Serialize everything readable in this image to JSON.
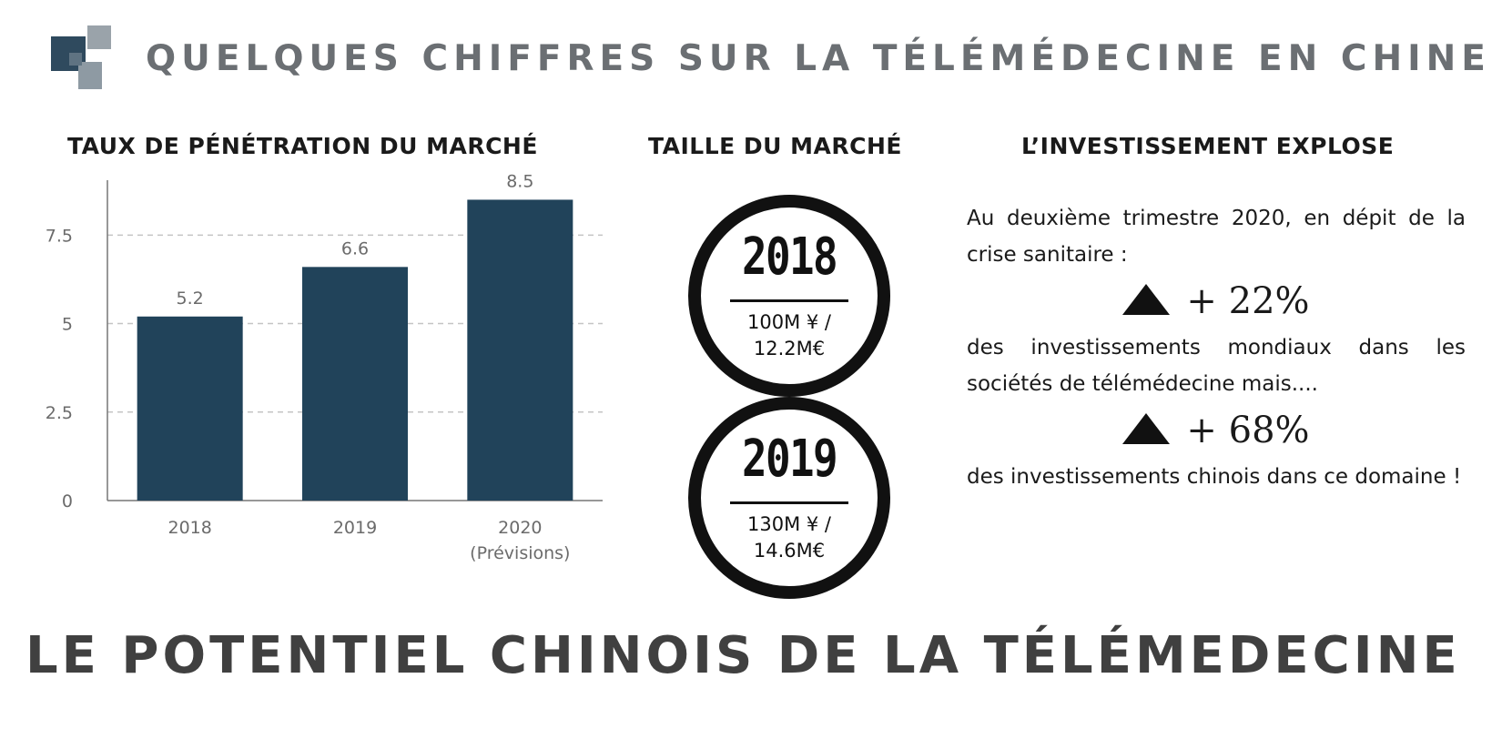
{
  "header": {
    "title": "QUELQUES CHIFFRES SUR LA TÉLÉMÉDECINE EN CHINE",
    "logo_icon": "squares-logo-icon"
  },
  "sections": {
    "penetration_title": "TAUX DE PÉNÉTRATION DU MARCHÉ",
    "size_title": "TAILLE DU MARCHÉ",
    "invest_title": "L’INVESTISSEMENT EXPLOSE"
  },
  "chart_data": {
    "type": "bar",
    "title": "TAUX DE PÉNÉTRATION DU MARCHÉ",
    "categories": [
      "2018",
      "2019",
      "2020"
    ],
    "category_sublabels": [
      "",
      "",
      "(Prévisions)"
    ],
    "values": [
      5.2,
      6.6,
      8.5
    ],
    "data_labels": [
      "5.2",
      "6.6",
      "8.5"
    ],
    "ylim": [
      0,
      9
    ],
    "yticks": [
      0,
      2.5,
      5,
      7.5
    ],
    "ytick_labels": [
      "0",
      "2.5",
      "5",
      "7.5"
    ],
    "grid": true,
    "bar_color": "#21435a",
    "xlabel": "",
    "ylabel": ""
  },
  "market_size": [
    {
      "year": "2018",
      "line1": "100M ¥ /",
      "line2": "12.2M€"
    },
    {
      "year": "2019",
      "line1": "130M ¥ /",
      "line2": "14.6M€"
    }
  ],
  "investment": {
    "intro": "Au deuxième trimestre 2020, en dépit de la crise sanitaire :",
    "stat1": "+ 22%",
    "text1": "des investissements mondiaux dans les sociétés de télémédecine mais....",
    "stat2": "+ 68%",
    "text2": "des investissements chinois dans ce domaine !",
    "arrow_icon": "up-triangle-icon"
  },
  "footer": {
    "title": "LE POTENTIEL CHINOIS DE LA TÉLÉMEDECINE"
  }
}
